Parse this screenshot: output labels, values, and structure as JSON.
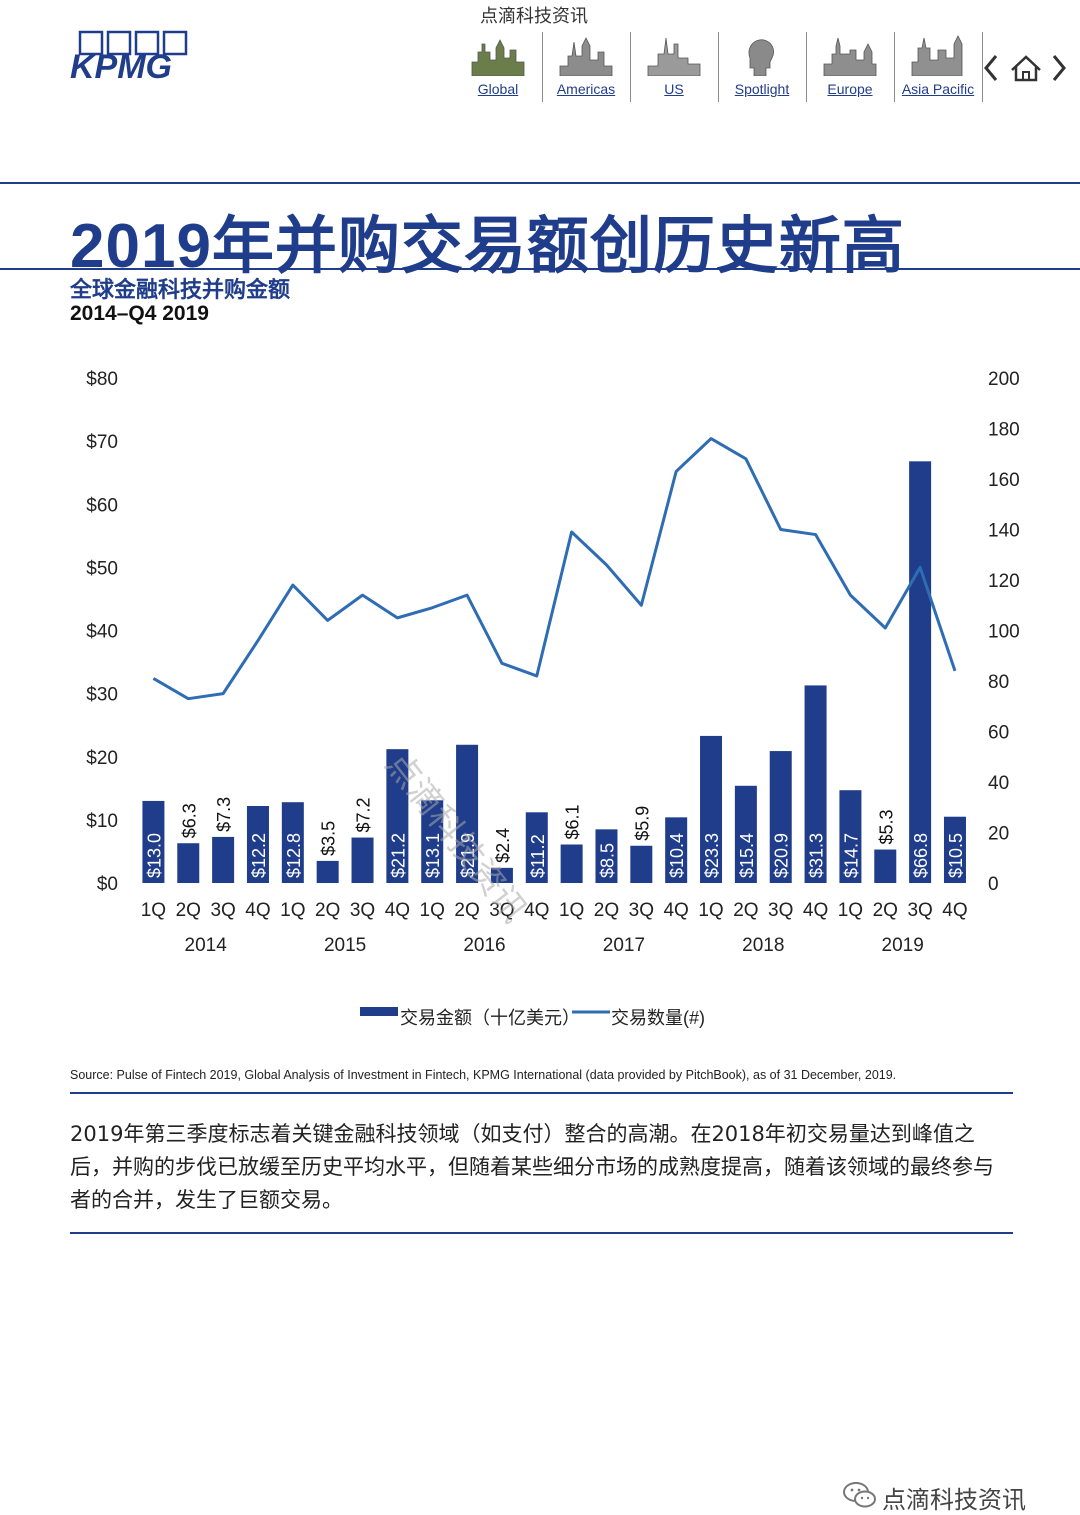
{
  "watermark_top": "点滴科技资讯",
  "logo": {
    "text": "KPMG",
    "icon": "kpmg-logo"
  },
  "nav": {
    "items": [
      {
        "label": "Global",
        "icon": "skyline-global-icon"
      },
      {
        "label": "Americas",
        "icon": "skyline-americas-icon"
      },
      {
        "label": "US",
        "icon": "skyline-us-icon"
      },
      {
        "label": "Spotlight",
        "icon": "spotlight-head-icon"
      },
      {
        "label": "Europe",
        "icon": "skyline-europe-icon"
      },
      {
        "label": "Asia Pacific",
        "icon": "skyline-asia-pacific-icon"
      }
    ],
    "prev_icon": "chevron-left-icon",
    "home_icon": "home-icon",
    "next_icon": "chevron-right-icon"
  },
  "title": "2019年并购交易额创历史新高",
  "chart_title": "全球金融科技并购金额",
  "chart_subtitle": "2014–Q4 2019",
  "chart_data": {
    "type": "bar",
    "categories": [
      "1Q",
      "2Q",
      "3Q",
      "4Q",
      "1Q",
      "2Q",
      "3Q",
      "4Q",
      "1Q",
      "2Q",
      "3Q",
      "4Q",
      "1Q",
      "2Q",
      "3Q",
      "4Q",
      "1Q",
      "2Q",
      "3Q",
      "4Q",
      "1Q",
      "2Q",
      "3Q",
      "4Q"
    ],
    "years": [
      "2014",
      "2015",
      "2016",
      "2017",
      "2018",
      "2019"
    ],
    "series": [
      {
        "name": "交易金额（十亿美元）",
        "type": "bar",
        "axis": "left",
        "color": "#1f3d8a",
        "values": [
          13.0,
          6.3,
          7.3,
          12.2,
          12.8,
          3.5,
          7.2,
          21.2,
          13.1,
          21.9,
          2.4,
          11.2,
          6.1,
          8.5,
          5.9,
          10.4,
          23.3,
          15.4,
          20.9,
          31.3,
          14.7,
          5.3,
          66.8,
          10.5
        ],
        "labels": [
          "$13.0",
          "$6.3",
          "$7.3",
          "$12.2",
          "$12.8",
          "$3.5",
          "$7.2",
          "$21.2",
          "$13.1",
          "$21.9",
          "$2.4",
          "$11.2",
          "$6.1",
          "$8.5",
          "$5.9",
          "$10.4",
          "$23.3",
          "$15.4",
          "$20.9",
          "$31.3",
          "$14.7",
          "$5.3",
          "$66.8",
          "$10.5"
        ]
      },
      {
        "name": "交易数量(#)",
        "type": "line",
        "axis": "right",
        "color": "#2e6db4",
        "values": [
          81,
          73,
          75,
          96,
          118,
          104,
          114,
          105,
          109,
          114,
          87,
          82,
          139,
          126,
          110,
          163,
          176,
          168,
          140,
          138,
          114,
          101,
          125,
          84
        ]
      }
    ],
    "left_axis": {
      "ticks": [
        "$0",
        "$10",
        "$20",
        "$30",
        "$40",
        "$50",
        "$60",
        "$70",
        "$80"
      ],
      "ylim": [
        0,
        80
      ]
    },
    "right_axis": {
      "ticks": [
        "0",
        "20",
        "40",
        "60",
        "80",
        "100",
        "120",
        "140",
        "160",
        "180",
        "200"
      ],
      "ylim": [
        0,
        200
      ]
    },
    "legend_position": "bottom",
    "grid": false
  },
  "source": "Source: Pulse of Fintech 2019, Global Analysis of Investment in Fintech, KPMG International (data provided by PitchBook), as of 31 December, 2019.",
  "body_text": "2019年第三季度标志着关键金融科技领域（如支付）整合的高潮。在2018年初交易量达到峰值之后，并购的步伐已放缓至历史平均水平，但随着某些细分市场的成熟度提高，随着该领域的最终参与者的合并，发生了巨额交易。",
  "watermark_diagonal": "点滴科技资讯",
  "wechat": {
    "icon": "wechat-icon",
    "text": "点滴科技资讯"
  }
}
